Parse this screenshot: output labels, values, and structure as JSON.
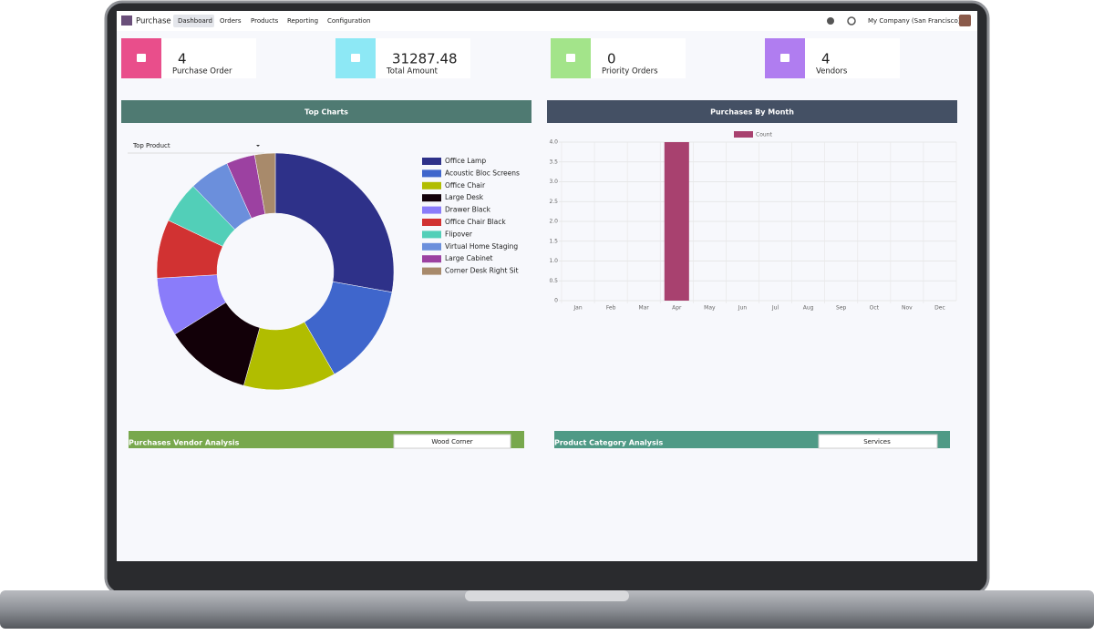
{
  "nav": {
    "app": "Purchase",
    "menu": [
      "Dashboard",
      "Orders",
      "Products",
      "Reporting",
      "Configuration"
    ],
    "company": "My Company (San Francisco)"
  },
  "cards": [
    {
      "value": 4,
      "label": "Purchase Order"
    },
    {
      "value": 31287.48,
      "label": "Total Amount"
    },
    {
      "value": 0,
      "label": "Priority Orders"
    },
    {
      "value": 4,
      "label": "Vendors"
    }
  ],
  "top_filter": "Top Product",
  "bottom_panels": [
    {
      "title": "Purchases Vendor Analysis",
      "selected": "Wood Corner"
    },
    {
      "title": "Product Category Analysis",
      "selected": "Services"
    }
  ],
  "chart_data": [
    {
      "type": "pie",
      "title": "Top Charts",
      "categories": [
        "Office Lamp",
        "Acoustic Bloc Screens",
        "Office Chair",
        "Large Desk",
        "Drawer Black",
        "Office Chair Black",
        "Flipover",
        "Virtual Home Staging",
        "Large Cabinet",
        "Corner Desk Right Sit"
      ],
      "values": [
        27.8,
        13.9,
        12.6,
        11.8,
        8,
        8,
        5.7,
        5.5,
        3.9,
        2.8
      ],
      "colors": [
        "#2e3189",
        "#3f66cc",
        "#b1bd00",
        "#120008",
        "#8a7cfa",
        "#d13232",
        "#52cfb8",
        "#6b8fdc",
        "#9c41a1",
        "#a88a6b"
      ]
    },
    {
      "type": "bar",
      "title": "Purchases By Month",
      "categories": [
        "Jan",
        "Feb",
        "Mar",
        "Apr",
        "May",
        "Jun",
        "Jul",
        "Aug",
        "Sep",
        "Oct",
        "Nov",
        "Dec"
      ],
      "series": [
        {
          "name": "Count",
          "color": "#a8416f",
          "values": [
            0,
            0,
            0,
            4,
            0,
            0,
            0,
            0,
            0,
            0,
            0,
            0
          ]
        }
      ],
      "ylim": [
        0,
        4
      ],
      "yticks": [
        0,
        0.5,
        {
          "value": 1,
          "label": "1.0"
        },
        1.5,
        {
          "value": 2,
          "label": "2.0"
        },
        2.5,
        {
          "value": 3,
          "label": "3.0"
        },
        3.5,
        {
          "value": 4,
          "label": "4.0"
        }
      ],
      "grid": true
    }
  ]
}
